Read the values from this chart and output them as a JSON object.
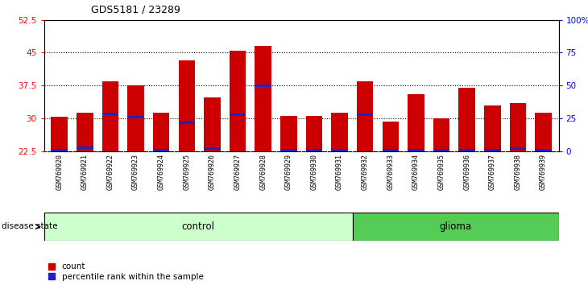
{
  "title": "GDS5181 / 23289",
  "samples": [
    "GSM769920",
    "GSM769921",
    "GSM769922",
    "GSM769923",
    "GSM769924",
    "GSM769925",
    "GSM769926",
    "GSM769927",
    "GSM769928",
    "GSM769929",
    "GSM769930",
    "GSM769931",
    "GSM769932",
    "GSM769933",
    "GSM769934",
    "GSM769935",
    "GSM769936",
    "GSM769937",
    "GSM769938",
    "GSM769939"
  ],
  "bar_values": [
    30.3,
    31.2,
    38.5,
    37.5,
    31.3,
    43.3,
    34.7,
    45.5,
    46.5,
    30.5,
    30.5,
    31.3,
    38.5,
    29.3,
    35.5,
    30.0,
    37.0,
    33.0,
    33.5,
    31.3
  ],
  "percentile_positions": [
    22.65,
    23.3,
    31.0,
    30.3,
    22.7,
    29.0,
    23.0,
    30.8,
    37.5,
    22.7,
    22.65,
    22.7,
    30.8,
    22.7,
    22.7,
    22.7,
    22.7,
    22.7,
    23.0,
    22.7
  ],
  "y_min": 22.5,
  "y_max": 52.5,
  "y_ticks_left": [
    22.5,
    30,
    37.5,
    45,
    52.5
  ],
  "y_ticks_right_pct": [
    0,
    25,
    50,
    75,
    100
  ],
  "y_ticks_right_labels": [
    "0",
    "25",
    "50",
    "75",
    "100%"
  ],
  "bar_color": "#cc0000",
  "percentile_color": "#2222bb",
  "control_count": 12,
  "glioma_count": 8,
  "control_label": "control",
  "glioma_label": "glioma",
  "disease_state_label": "disease state",
  "legend_count_label": "count",
  "legend_pct_label": "percentile rank within the sample",
  "control_bg": "#ccffcc",
  "glioma_bg": "#55cc55",
  "tick_bg": "#cccccc",
  "grid_yticks": [
    30,
    37.5,
    45
  ]
}
